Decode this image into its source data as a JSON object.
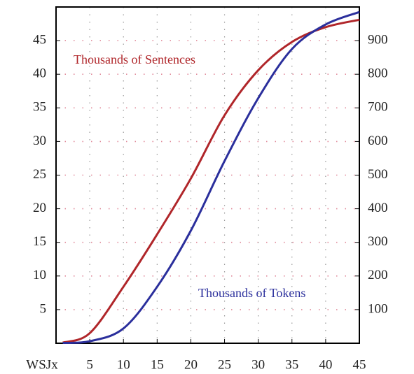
{
  "chart_data": {
    "type": "line",
    "x_label": "WSJx",
    "x": [
      1,
      5,
      10,
      15,
      20,
      25,
      30,
      35,
      40,
      45
    ],
    "xlim": [
      0,
      45
    ],
    "xticks": [
      5,
      10,
      15,
      20,
      25,
      30,
      35,
      40,
      45
    ],
    "ylim": [
      0,
      50
    ],
    "yticks": [
      5,
      10,
      15,
      20,
      25,
      30,
      35,
      40,
      45
    ],
    "y2lim": [
      0,
      1000
    ],
    "y2ticks": [
      100,
      200,
      300,
      400,
      500,
      600,
      700,
      800,
      900
    ],
    "grid": true,
    "series": [
      {
        "name": "Thousands of Sentences",
        "color": "#b0262a",
        "values": [
          0.1,
          1.5,
          8.4,
          16.2,
          24.5,
          33.9,
          40.6,
          44.8,
          47,
          48.1
        ]
      },
      {
        "name": "Thousands of Tokens",
        "color": "#2b2f9c",
        "axis": "y2",
        "values": [
          1,
          6,
          44,
          168,
          335,
          542,
          729,
          875,
          948,
          985
        ]
      }
    ]
  }
}
